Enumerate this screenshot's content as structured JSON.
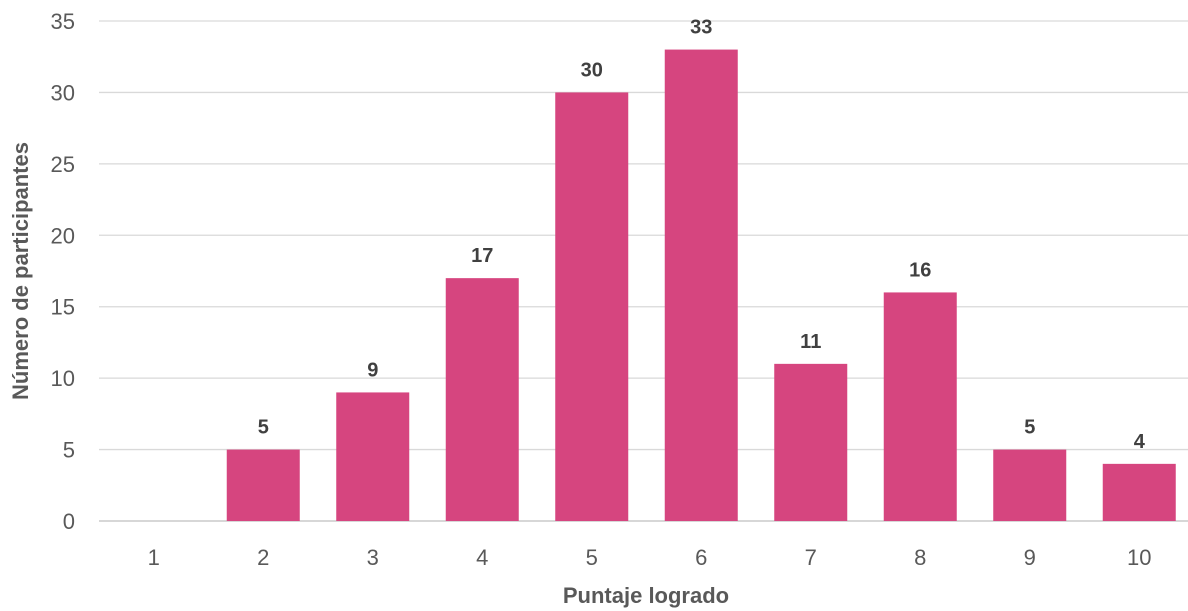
{
  "chart_data": {
    "type": "bar",
    "categories": [
      "1",
      "2",
      "3",
      "4",
      "5",
      "6",
      "7",
      "8",
      "9",
      "10"
    ],
    "values": [
      0,
      5,
      9,
      17,
      30,
      33,
      11,
      16,
      5,
      4
    ],
    "data_labels": [
      "",
      "5",
      "9",
      "17",
      "30",
      "33",
      "11",
      "16",
      "5",
      "4"
    ],
    "xlabel": "Puntaje logrado",
    "ylabel": "Número de participantes",
    "ylim": [
      0,
      35
    ],
    "yticks": [
      0,
      5,
      10,
      15,
      20,
      25,
      30,
      35
    ],
    "grid": true,
    "legend": "none",
    "bar_color": "#d6457f"
  }
}
